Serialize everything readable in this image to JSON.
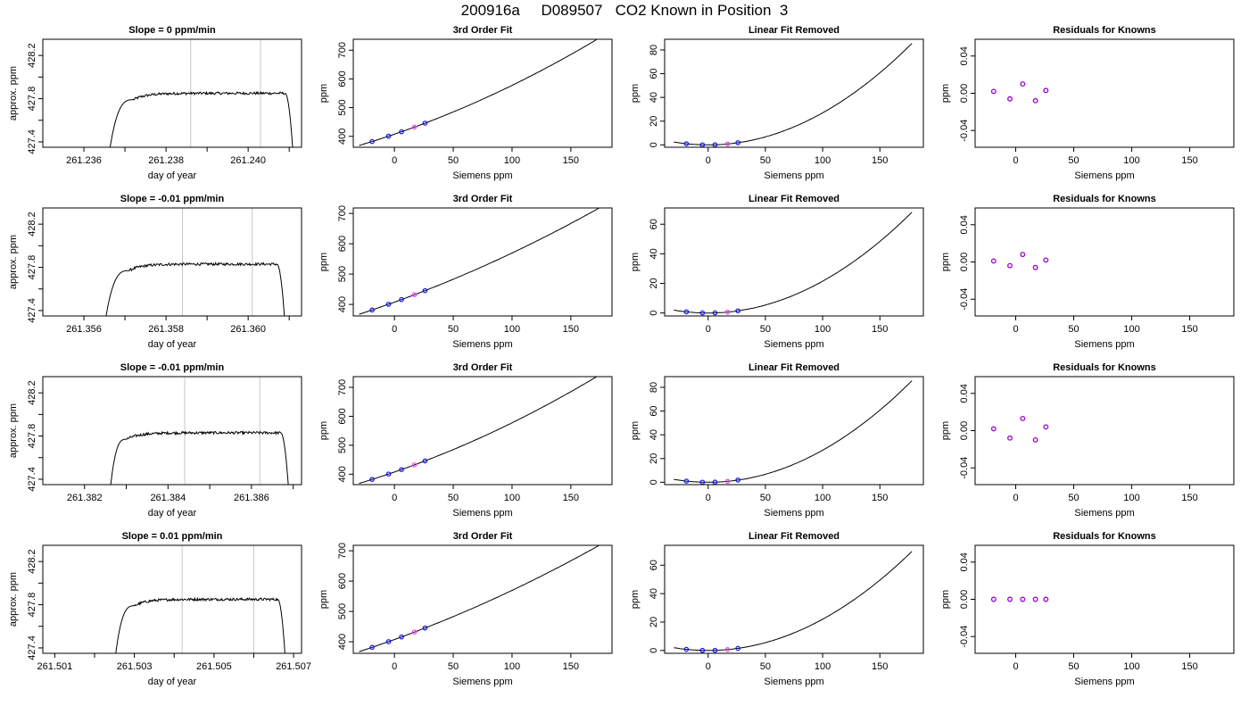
{
  "figure_title": "200916a     D089507   CO2 Known in Position  3",
  "colors": {
    "trace": "#000000",
    "window": "#c8c8c8",
    "pink_segment": "#ff3333",
    "point_blue": "#1010ee",
    "point_purple": "#9900cc",
    "point_cyan": "#00cccc",
    "point_magenta": "#ee44ee",
    "point_green": "#00b050"
  },
  "chart_data": [
    {
      "type": "line",
      "title": "Slope =  0  ppm/min",
      "xlabel": "day of year",
      "ylabel": "approx. ppm",
      "xlim": [
        261.235,
        261.2413
      ],
      "ylim": [
        427.35,
        428.35
      ],
      "xticks": [
        "261.236",
        "261.238",
        "261.240"
      ],
      "yticks": [
        "427.4",
        "427.8",
        "428.2"
      ],
      "trace": {
        "x0": 261.2366,
        "x_rise_end": 261.2372,
        "x_fall_start": 261.2409,
        "x1": 261.2411,
        "plateau": 427.85,
        "noise": 0.012
      },
      "window_lines": [
        261.2386,
        261.2403
      ]
    },
    {
      "type": "line",
      "title": "3rd Order Fit",
      "xlabel": "Siemens ppm",
      "ylabel": "ppm",
      "xlim": [
        -35,
        185
      ],
      "ylim": [
        362,
        738
      ],
      "xticks": [
        "0",
        "50",
        "100",
        "150"
      ],
      "yticks": [
        "400",
        "500",
        "600",
        "700"
      ],
      "curve": {
        "x0": -30,
        "x1": 178,
        "coef": [
          407.5,
          1.4,
          0.003,
          0
        ]
      },
      "points": [
        -19,
        -5,
        6,
        17,
        26
      ]
    },
    {
      "type": "line",
      "title": "Linear Fit Removed",
      "xlabel": "Siemens ppm",
      "ylabel": "ppm",
      "xlim": [
        -38,
        188
      ],
      "ylim": [
        -2,
        89
      ],
      "xticks": [
        "0",
        "50",
        "100",
        "150"
      ],
      "yticks": [
        "0",
        "20",
        "40",
        "60",
        "80"
      ],
      "curve": {
        "x0": -30,
        "x1": 178,
        "coef": [
          0,
          0,
          0.0027,
          0
        ]
      },
      "points": [
        -19,
        -5,
        6,
        17,
        26
      ]
    },
    {
      "type": "scatter",
      "title": "Residuals for Knowns",
      "xlabel": "Siemens ppm",
      "ylabel": "ppm",
      "xlim": [
        -35,
        188
      ],
      "ylim": [
        -0.058,
        0.058
      ],
      "xticks": [
        "0",
        "50",
        "100",
        "150"
      ],
      "yticks": [
        "-0.04",
        "0.00",
        "0.04"
      ],
      "x": [
        -19,
        -5,
        6,
        17,
        26
      ],
      "y": [
        0.002,
        -0.006,
        0.01,
        -0.008,
        0.003
      ]
    },
    {
      "type": "line",
      "title": "Slope =  -0.01  ppm/min",
      "xlabel": "day of year",
      "ylabel": "approx. ppm",
      "xlim": [
        261.355,
        261.3613
      ],
      "ylim": [
        427.35,
        428.35
      ],
      "xticks": [
        "261.356",
        "261.358",
        "261.360"
      ],
      "yticks": [
        "427.4",
        "427.8",
        "428.2"
      ],
      "trace": {
        "x0": 261.3565,
        "x_rise_end": 261.3571,
        "x_fall_start": 261.3607,
        "x1": 261.3609,
        "plateau": 427.83,
        "noise": 0.012
      },
      "window_lines": [
        261.3584,
        261.3601
      ]
    },
    {
      "type": "line",
      "title": "3rd Order Fit",
      "xlabel": "Siemens ppm",
      "ylabel": "ppm",
      "xlim": [
        -35,
        185
      ],
      "ylim": [
        362,
        718
      ],
      "xticks": [
        "0",
        "50",
        "100",
        "150"
      ],
      "yticks": [
        "400",
        "500",
        "600",
        "700"
      ],
      "curve": {
        "x0": -30,
        "x1": 178,
        "coef": [
          407.5,
          1.4,
          0.0022,
          0
        ]
      },
      "points": [
        -19,
        -5,
        6,
        17,
        26
      ]
    },
    {
      "type": "line",
      "title": "Linear Fit Removed",
      "xlabel": "Siemens ppm",
      "ylabel": "ppm",
      "xlim": [
        -38,
        188
      ],
      "ylim": [
        -2,
        71
      ],
      "xticks": [
        "0",
        "50",
        "100",
        "150"
      ],
      "yticks": [
        "0",
        "20",
        "40",
        "60"
      ],
      "curve": {
        "x0": -30,
        "x1": 178,
        "coef": [
          0,
          0,
          0.00215,
          0
        ]
      },
      "points": [
        -19,
        -5,
        6,
        17,
        26
      ]
    },
    {
      "type": "scatter",
      "title": "Residuals for Knowns",
      "xlabel": "Siemens ppm",
      "ylabel": "ppm",
      "xlim": [
        -35,
        188
      ],
      "ylim": [
        -0.058,
        0.058
      ],
      "xticks": [
        "0",
        "50",
        "100",
        "150"
      ],
      "yticks": [
        "-0.04",
        "0.00",
        "0.04"
      ],
      "x": [
        -19,
        -5,
        6,
        17,
        26
      ],
      "y": [
        0.001,
        -0.004,
        0.008,
        -0.006,
        0.002
      ]
    },
    {
      "type": "line",
      "title": "Slope =  -0.01  ppm/min",
      "xlabel": "day of year",
      "ylabel": "approx. ppm",
      "xlim": [
        261.381,
        261.3872
      ],
      "ylim": [
        427.35,
        428.35
      ],
      "xticks": [
        "261.382",
        "261.384",
        "261.386"
      ],
      "yticks": [
        "427.4",
        "427.8",
        "428.2"
      ],
      "trace": {
        "x0": 261.3826,
        "x_rise_end": 261.383,
        "x_fall_start": 261.3867,
        "x1": 261.3869,
        "plateau": 427.83,
        "noise": 0.012
      },
      "window_lines": [
        261.3844,
        261.3862
      ]
    },
    {
      "type": "line",
      "title": "3rd Order Fit",
      "xlabel": "Siemens ppm",
      "ylabel": "ppm",
      "xlim": [
        -35,
        185
      ],
      "ylim": [
        364,
        737
      ],
      "xticks": [
        "0",
        "50",
        "100",
        "150"
      ],
      "yticks": [
        "400",
        "500",
        "600",
        "700"
      ],
      "curve": {
        "x0": -30,
        "x1": 178,
        "coef": [
          407.5,
          1.4,
          0.003,
          0
        ]
      },
      "points": [
        -19,
        -5,
        6,
        17,
        26
      ]
    },
    {
      "type": "line",
      "title": "Linear Fit Removed",
      "xlabel": "Siemens ppm",
      "ylabel": "ppm",
      "xlim": [
        -38,
        188
      ],
      "ylim": [
        -2,
        89
      ],
      "xticks": [
        "0",
        "50",
        "100",
        "150"
      ],
      "yticks": [
        "0",
        "20",
        "40",
        "60",
        "80"
      ],
      "curve": {
        "x0": -30,
        "x1": 178,
        "coef": [
          0,
          0,
          0.0027,
          0
        ]
      },
      "points": [
        -19,
        -5,
        6,
        17,
        26
      ]
    },
    {
      "type": "scatter",
      "title": "Residuals for Knowns",
      "xlabel": "Siemens ppm",
      "ylabel": "ppm",
      "xlim": [
        -35,
        188
      ],
      "ylim": [
        -0.058,
        0.058
      ],
      "xticks": [
        "0",
        "50",
        "100",
        "150"
      ],
      "yticks": [
        "-0.04",
        "0.00",
        "0.04"
      ],
      "x": [
        -19,
        -5,
        6,
        17,
        26
      ],
      "y": [
        0.002,
        -0.008,
        0.013,
        -0.01,
        0.004
      ]
    },
    {
      "type": "line",
      "title": "Slope =  0.01  ppm/min",
      "xlabel": "day of year",
      "ylabel": "approx. ppm",
      "xlim": [
        261.5007,
        261.5072
      ],
      "ylim": [
        427.35,
        428.35
      ],
      "xticks": [
        "261.501",
        "261.503",
        "261.505",
        "261.507"
      ],
      "yticks": [
        "427.4",
        "427.8",
        "428.2"
      ],
      "trace": {
        "x0": 261.5025,
        "x_rise_end": 261.503,
        "x_fall_start": 261.5066,
        "x1": 261.5068,
        "plateau": 427.85,
        "noise": 0.012
      },
      "window_lines": [
        261.5042,
        261.506
      ]
    },
    {
      "type": "line",
      "title": "3rd Order Fit",
      "xlabel": "Siemens ppm",
      "ylabel": "ppm",
      "xlim": [
        -35,
        185
      ],
      "ylim": [
        362,
        718
      ],
      "xticks": [
        "0",
        "50",
        "100",
        "150"
      ],
      "yticks": [
        "400",
        "500",
        "600",
        "700"
      ],
      "curve": {
        "x0": -30,
        "x1": 178,
        "coef": [
          407.5,
          1.4,
          0.0022,
          0
        ]
      },
      "points": [
        -19,
        -5,
        6,
        17,
        26
      ]
    },
    {
      "type": "line",
      "title": "Linear Fit Removed",
      "xlabel": "Siemens ppm",
      "ylabel": "ppm",
      "xlim": [
        -38,
        188
      ],
      "ylim": [
        -2,
        74
      ],
      "xticks": [
        "0",
        "50",
        "100",
        "150"
      ],
      "yticks": [
        "0",
        "20",
        "40",
        "60"
      ],
      "curve": {
        "x0": -30,
        "x1": 178,
        "coef": [
          0,
          0,
          0.0022,
          0
        ]
      },
      "points": [
        -19,
        -5,
        6,
        17,
        26
      ]
    },
    {
      "type": "scatter",
      "title": "Residuals for Knowns",
      "xlabel": "Siemens ppm",
      "ylabel": "ppm",
      "xlim": [
        -35,
        188
      ],
      "ylim": [
        -0.058,
        0.058
      ],
      "xticks": [
        "0",
        "50",
        "100",
        "150"
      ],
      "yticks": [
        "-0.04",
        "0.00",
        "0.04"
      ],
      "x": [
        -19,
        -5,
        6,
        17,
        26
      ],
      "y": [
        0.0,
        0.0,
        0.0,
        0.0,
        0.0
      ]
    }
  ]
}
